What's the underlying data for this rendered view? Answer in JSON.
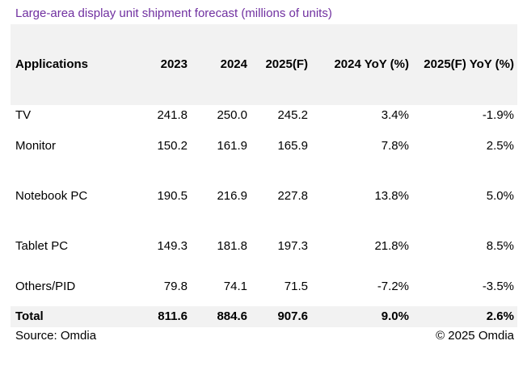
{
  "chart_data": {
    "type": "table",
    "title": "Large-area display unit shipment forecast (millions of units)",
    "columns": [
      "Applications",
      "2023",
      "2024",
      "2025(F)",
      "2024 YoY (%)",
      "2025(F) YoY (%)"
    ],
    "rows": [
      [
        "TV",
        "241.8",
        "250.0",
        "245.2",
        "3.4%",
        "-1.9%"
      ],
      [
        "Monitor",
        "150.2",
        "161.9",
        "165.9",
        "7.8%",
        "2.5%"
      ],
      [
        "Notebook PC",
        "190.5",
        "216.9",
        "227.8",
        "13.8%",
        "5.0%"
      ],
      [
        "Tablet PC",
        "149.3",
        "181.8",
        "197.3",
        "21.8%",
        "8.5%"
      ],
      [
        "Others/PID",
        "79.8",
        "74.1",
        "71.5",
        "-7.2%",
        "-3.5%"
      ]
    ],
    "total": [
      "Total",
      "811.6",
      "884.6",
      "907.6",
      "9.0%",
      "2.6%"
    ]
  },
  "footer": {
    "source": "Source: Omdia",
    "copyright": "© 2025 Omdia"
  },
  "colors": {
    "title": "#7030a0",
    "band": "#f2f2f2"
  }
}
